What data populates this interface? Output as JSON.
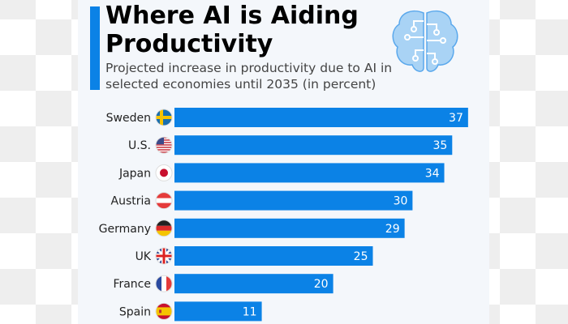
{
  "colors": {
    "bar": "#0b82e6",
    "accent": "#0b82e6",
    "brain": "#7fbdf0"
  },
  "icons": {
    "header": "brain-circuit-icon"
  },
  "chart_data": {
    "type": "bar",
    "orientation": "horizontal",
    "title": "Where AI is Aiding Productivity",
    "subtitle": "Projected increase in productivity due to AI in selected economies until 2035 (in percent)",
    "categories": [
      "Sweden",
      "U.S.",
      "Japan",
      "Austria",
      "Germany",
      "UK",
      "France",
      "Spain"
    ],
    "flags": [
      "sweden-flag-icon",
      "us-flag-icon",
      "japan-flag-icon",
      "austria-flag-icon",
      "germany-flag-icon",
      "uk-flag-icon",
      "france-flag-icon",
      "spain-flag-icon"
    ],
    "values": [
      37,
      35,
      34,
      30,
      29,
      25,
      20,
      11
    ],
    "data_labels": true,
    "grid": false,
    "xlim": [
      0,
      40
    ]
  }
}
